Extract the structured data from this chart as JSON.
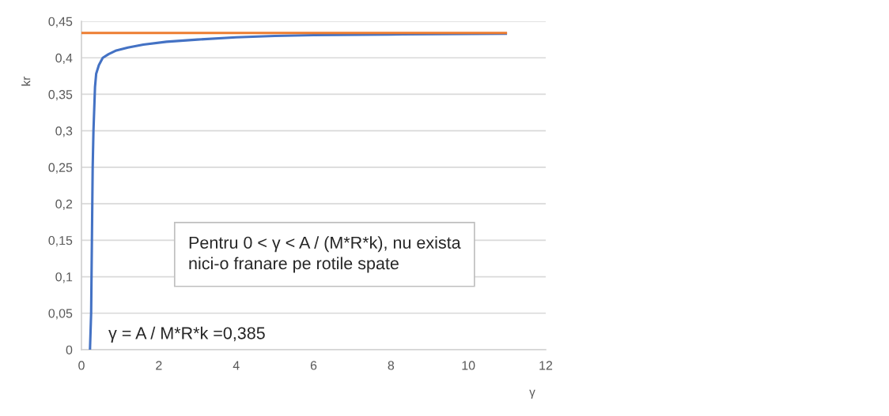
{
  "chart_data": {
    "type": "line",
    "xlabel": "γ",
    "ylabel": "kr",
    "series": [
      {
        "color": "#4472c4",
        "x": [
          0.22,
          0.25,
          0.27,
          0.29,
          0.31,
          0.35,
          0.38,
          0.45,
          0.55,
          0.7,
          0.9,
          1.2,
          1.6,
          2.2,
          3,
          4,
          5,
          6,
          8,
          11
        ],
        "values": [
          0,
          0.05,
          0.15,
          0.25,
          0.3,
          0.36,
          0.378,
          0.39,
          0.4,
          0.405,
          0.41,
          0.414,
          0.418,
          0.422,
          0.425,
          0.428,
          0.43,
          0.431,
          0.432,
          0.433
        ]
      },
      {
        "color": "#ed7d31",
        "x": [
          0,
          11
        ],
        "values": [
          0.434,
          0.434
        ]
      }
    ],
    "xlim": [
      0,
      12
    ],
    "xticks": [
      0,
      2,
      4,
      6,
      8,
      10,
      12
    ],
    "ylim": [
      0,
      0.45
    ],
    "yticks": [
      {
        "value": 0,
        "label": "0"
      },
      {
        "value": 0.05,
        "label": "0,05"
      },
      {
        "value": 0.1,
        "label": "0,1"
      },
      {
        "value": 0.15,
        "label": "0,15"
      },
      {
        "value": 0.2,
        "label": "0,2"
      },
      {
        "value": 0.25,
        "label": "0,25"
      },
      {
        "value": 0.3,
        "label": "0,3"
      },
      {
        "value": 0.35,
        "label": "0,35"
      },
      {
        "value": 0.4,
        "label": "0,4"
      },
      {
        "value": 0.45,
        "label": "0,45"
      }
    ],
    "grid": "y",
    "legend": false,
    "marker": "none",
    "line_style": "solid",
    "annotations": [
      "Pentru 0 < γ < A / (M*R*k), nu exista\nnici-o franare pe rotile spate",
      "γ = A / M*R*k =0,385"
    ]
  }
}
